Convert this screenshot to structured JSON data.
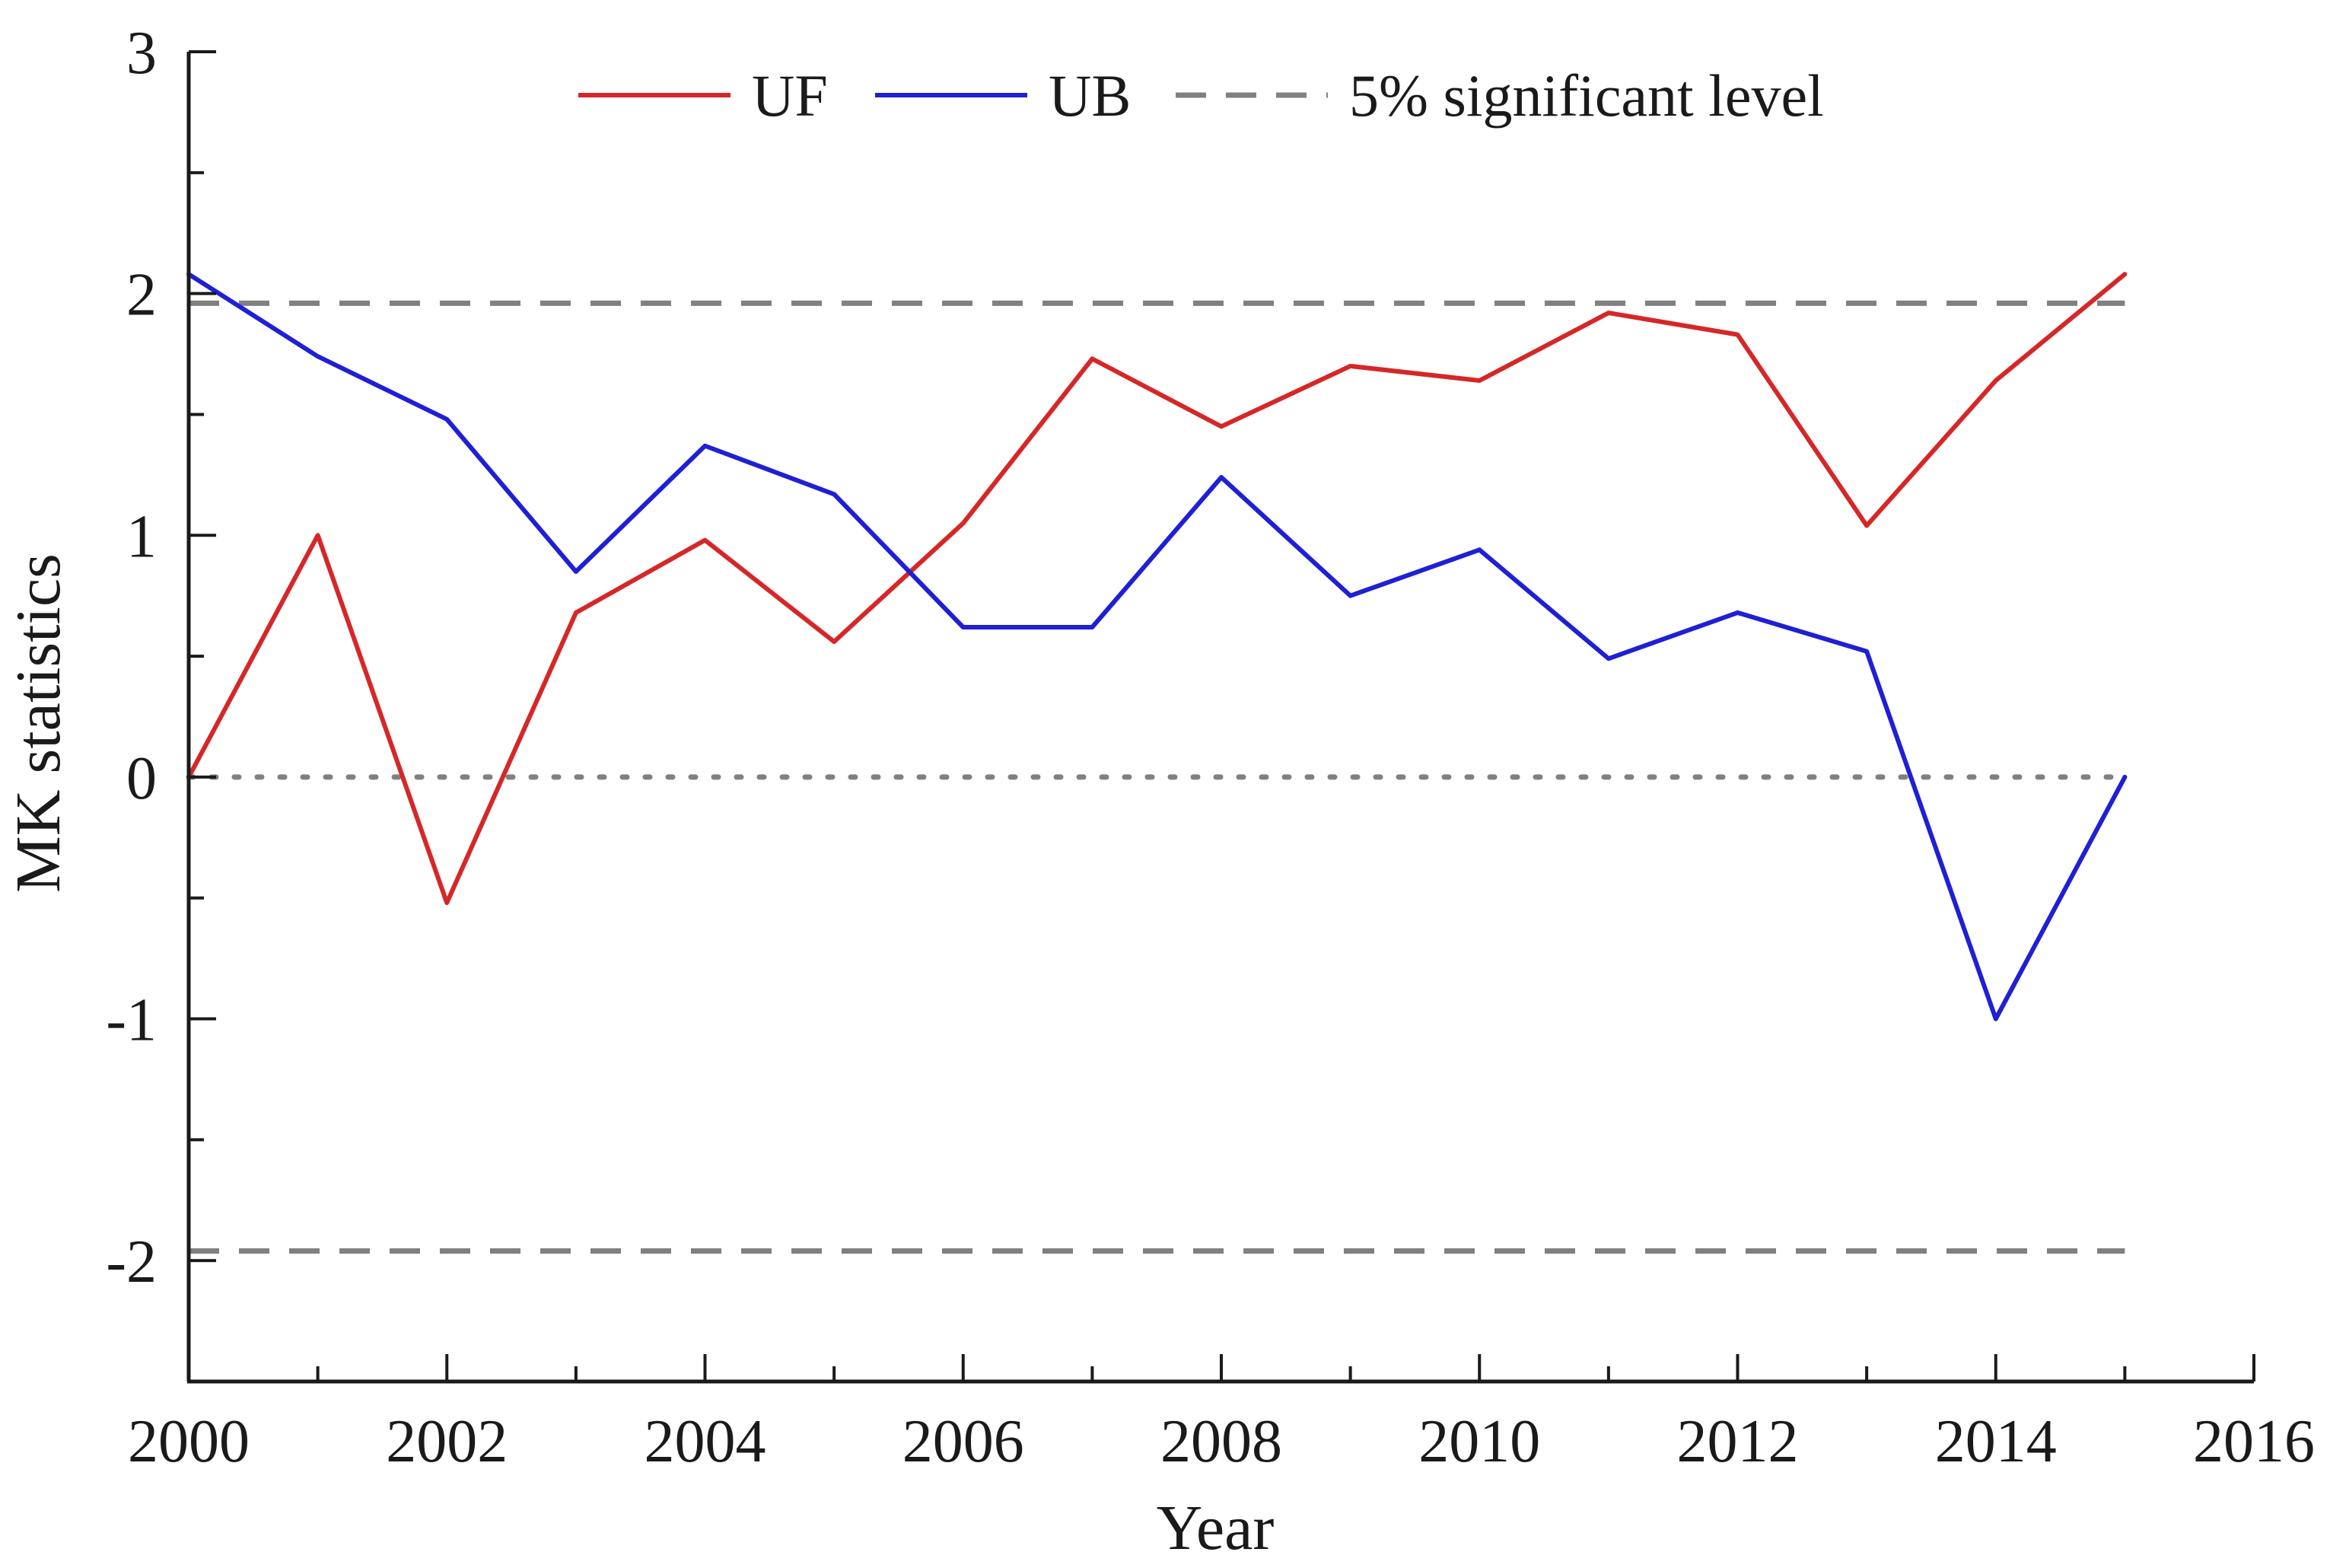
{
  "chart_data": {
    "type": "line",
    "title": "",
    "xlabel": "Year",
    "ylabel": "MK statistics",
    "xlim": [
      2000,
      2016
    ],
    "ylim": [
      -2.5,
      3
    ],
    "x_ticks": [
      2000,
      2002,
      2004,
      2006,
      2008,
      2010,
      2012,
      2014,
      2016
    ],
    "y_ticks": [
      -2,
      -1,
      0,
      1,
      2,
      3
    ],
    "x_tick_labels": [
      "2000",
      "2002",
      "2004",
      "2006",
      "2008",
      "2010",
      "2012",
      "2014",
      "2016"
    ],
    "y_tick_labels": [
      "-2",
      "-1",
      "0",
      "1",
      "2",
      "3"
    ],
    "x": [
      2000,
      2001,
      2002,
      2003,
      2004,
      2005,
      2006,
      2007,
      2008,
      2009,
      2010,
      2011,
      2012,
      2013,
      2014,
      2015
    ],
    "series": [
      {
        "name": "UF",
        "color": "#d62728",
        "values": [
          0.0,
          1.0,
          -0.52,
          0.68,
          0.98,
          0.56,
          1.05,
          1.73,
          1.45,
          1.7,
          1.64,
          1.92,
          1.83,
          1.04,
          1.64,
          2.08
        ]
      },
      {
        "name": "UB",
        "color": "#1f1fd6",
        "values": [
          2.08,
          1.74,
          1.48,
          0.85,
          1.37,
          1.17,
          0.62,
          0.62,
          1.24,
          0.75,
          0.94,
          0.49,
          0.68,
          0.52,
          -1.0,
          0.0
        ]
      }
    ],
    "reference_lines": [
      {
        "label": "5% significant level",
        "y": 1.96,
        "style": "dashed",
        "color": "#808080"
      },
      {
        "y": -1.96,
        "style": "dashed",
        "color": "#808080"
      },
      {
        "y": 0,
        "style": "dotted",
        "color": "#808080"
      }
    ],
    "legend": {
      "placement": "top-center",
      "entries": [
        "UF",
        "UB",
        "5% significant level"
      ]
    },
    "grid": false
  }
}
